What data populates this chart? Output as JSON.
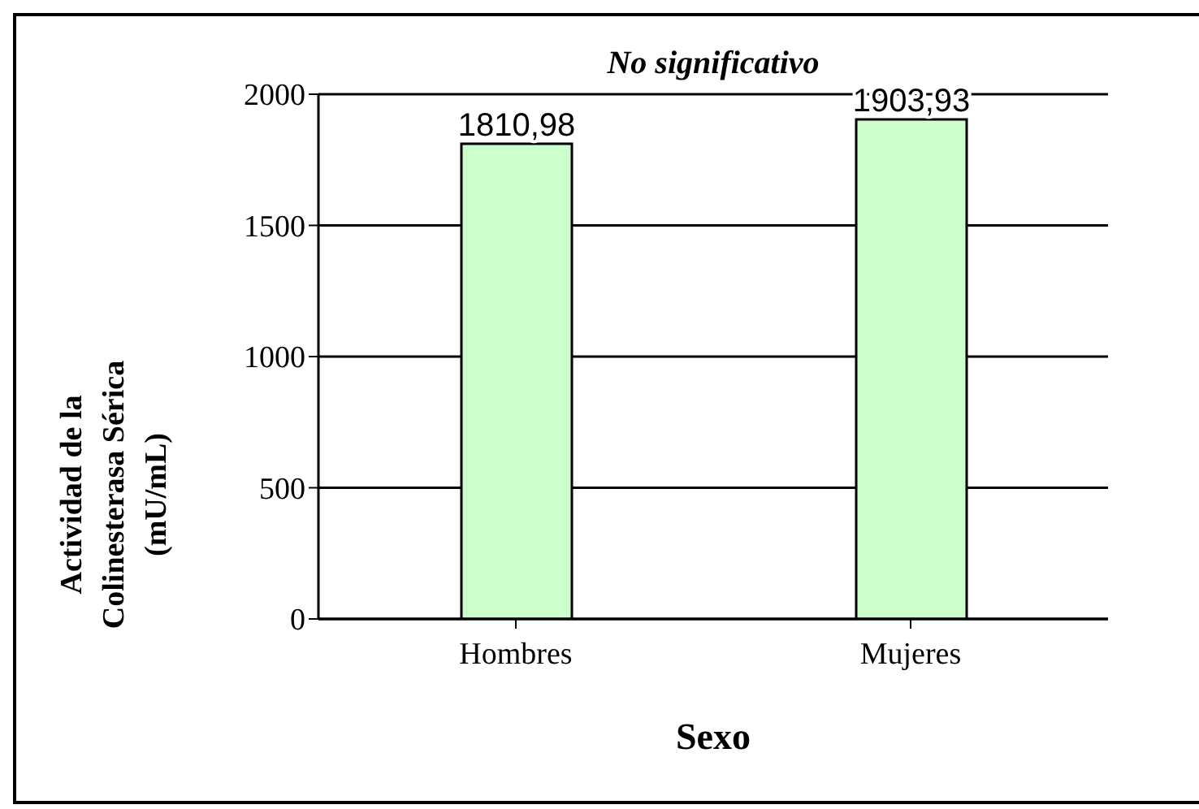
{
  "chart_data": {
    "type": "bar",
    "categories": [
      "Hombres",
      "Mujeres"
    ],
    "series": [
      {
        "color": "#ccffcc",
        "values": [
          1810.98,
          1903.93
        ],
        "value_labels": [
          "1810,98",
          "1903,93"
        ]
      }
    ],
    "ylim": [
      0,
      2000
    ],
    "yticks": [
      0,
      500,
      1000,
      1500,
      2000
    ],
    "grid": "y",
    "xlabel": "Sexo",
    "ylabel": "Actividad de la Colinesterasa Sérica (mU/mL)",
    "annotations": [
      "No significativo"
    ]
  }
}
